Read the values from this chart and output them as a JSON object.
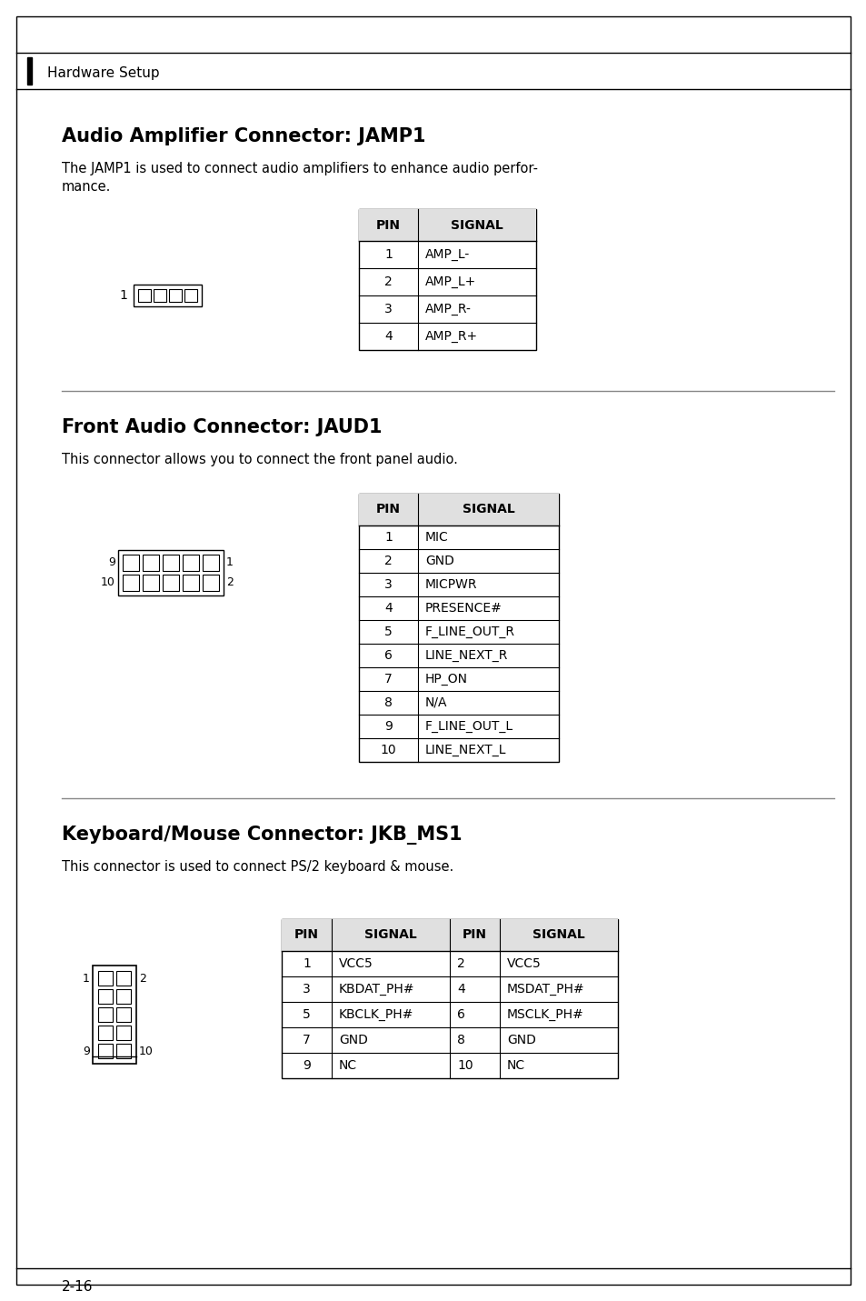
{
  "page_bg": "#ffffff",
  "header_text": "Hardware Setup",
  "page_number": "2-16",
  "section1_title": "Audio Amplifier Connector: JAMP1",
  "section1_desc1": "The JAMP1 is used to connect audio amplifiers to enhance audio perfor-",
  "section1_desc2": "mance.",
  "section1_table_headers": [
    "PIN",
    "SIGNAL"
  ],
  "section1_table_data": [
    [
      "1",
      "AMP_L-"
    ],
    [
      "2",
      "AMP_L+"
    ],
    [
      "3",
      "AMP_R-"
    ],
    [
      "4",
      "AMP_R+"
    ]
  ],
  "section2_title": "Front Audio Connector: JAUD1",
  "section2_desc": "This connector allows you to connect the front panel audio.",
  "section2_table_headers": [
    "PIN",
    "SIGNAL"
  ],
  "section2_table_data": [
    [
      "1",
      "MIC"
    ],
    [
      "2",
      "GND"
    ],
    [
      "3",
      "MICPWR"
    ],
    [
      "4",
      "PRESENCE#"
    ],
    [
      "5",
      "F_LINE_OUT_R"
    ],
    [
      "6",
      "LINE_NEXT_R"
    ],
    [
      "7",
      "HP_ON"
    ],
    [
      "8",
      "N/A"
    ],
    [
      "9",
      "F_LINE_OUT_L"
    ],
    [
      "10",
      "LINE_NEXT_L"
    ]
  ],
  "section3_title": "Keyboard/Mouse Connector: JKB_MS1",
  "section3_desc": "This connector is used to connect PS/2 keyboard & mouse.",
  "section3_table_headers": [
    "PIN",
    "SIGNAL",
    "PIN",
    "SIGNAL"
  ],
  "section3_table_left": [
    [
      "1",
      "VCC5"
    ],
    [
      "3",
      "KBDAT_PH#"
    ],
    [
      "5",
      "KBCLK_PH#"
    ],
    [
      "7",
      "GND"
    ],
    [
      "9",
      "NC"
    ]
  ],
  "section3_table_right": [
    [
      "2",
      "VCC5"
    ],
    [
      "4",
      "MSDAT_PH#"
    ],
    [
      "6",
      "MSCLK_PH#"
    ],
    [
      "8",
      "GND"
    ],
    [
      "10",
      "NC"
    ]
  ]
}
